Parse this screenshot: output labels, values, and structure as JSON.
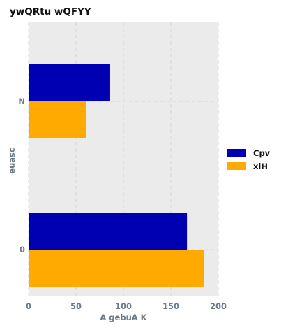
{
  "chart_data": {
    "type": "bar",
    "orientation": "horizontal",
    "title": "ywQRtu wQFYY",
    "xlabel": "A gebuA K",
    "ylabel": "euasc",
    "categories": [
      "N",
      "0"
    ],
    "series": [
      {
        "name": "Cpv",
        "values": [
          86,
          167
        ],
        "color": "#0000b3"
      },
      {
        "name": "xlH",
        "values": [
          61,
          185
        ],
        "color": "#ffaa00"
      }
    ],
    "xlim": [
      0,
      200
    ],
    "xticks": [
      0,
      50,
      100,
      150,
      200
    ],
    "grid": true,
    "legend_position": "right"
  }
}
